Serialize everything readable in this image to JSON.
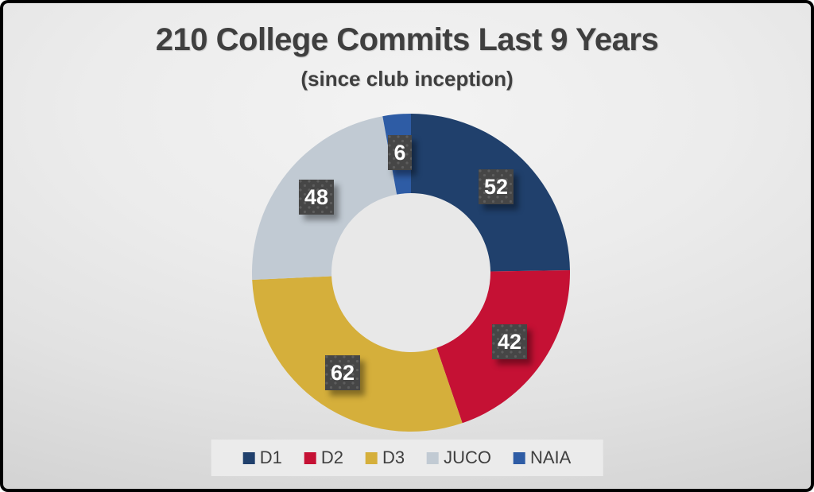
{
  "chart_data": {
    "type": "pie",
    "subtype": "donut",
    "title": "210 College Commits Last 9 Years",
    "subtitle": "(since club inception)",
    "total": 210,
    "categories": [
      "D1",
      "D2",
      "D3",
      "JUCO",
      "NAIA"
    ],
    "values": [
      52,
      42,
      62,
      48,
      6
    ],
    "colors": [
      "#20406C",
      "#C51134",
      "#D5AF3B",
      "#C1CAD3",
      "#2E5CA5"
    ],
    "start_angle_deg": 0,
    "direction": "clockwise",
    "donut_hole_ratio": 0.5,
    "hole_color": "#E8E8E8",
    "legend_position": "bottom",
    "data_labels": {
      "style": "dark-dotted-square",
      "text_color": "#FFFFFF",
      "background": "#464646"
    },
    "title_color": "#3F3F3F",
    "legend_background": "#EBEBEB"
  }
}
